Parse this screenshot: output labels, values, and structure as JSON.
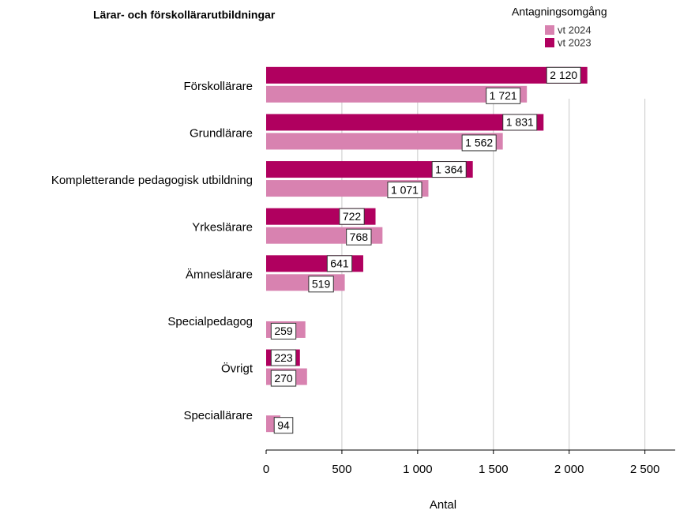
{
  "chart_data": {
    "type": "barh",
    "title": "Lärar- och förskollärarutbildningar",
    "xlabel": "Antal",
    "legend_title": "Antagningsomgång",
    "categories": [
      "Förskollärare",
      "Grundlärare",
      "Kompletterande pedagogisk utbildning",
      "Yrkeslärare",
      "Ämneslärare",
      "Specialpedagog",
      "Övrigt",
      "Speciallärare"
    ],
    "series": [
      {
        "name": "vt 2024",
        "color": "#d882b0",
        "values": [
          1721,
          1562,
          1071,
          768,
          519,
          259,
          270,
          94
        ],
        "value_labels": [
          "1 721",
          "1 562",
          "1 071",
          "768",
          "519",
          "259",
          "270",
          "94"
        ]
      },
      {
        "name": "vt 2023",
        "color": "#b0005f",
        "values": [
          2120,
          1831,
          1364,
          722,
          641,
          null,
          223,
          null
        ],
        "value_labels": [
          "2 120",
          "1 831",
          "1 364",
          "722",
          "641",
          null,
          "223",
          null
        ]
      }
    ],
    "xlim": [
      0,
      2700
    ],
    "xticks": [
      0,
      500,
      {
        "value": 1000,
        "label": "1 000"
      },
      {
        "value": 1500,
        "label": "1 500"
      },
      {
        "value": 2000,
        "label": "2 000"
      },
      {
        "value": 2500,
        "label": "2 500"
      }
    ],
    "grid": true,
    "legend": "top-right"
  }
}
